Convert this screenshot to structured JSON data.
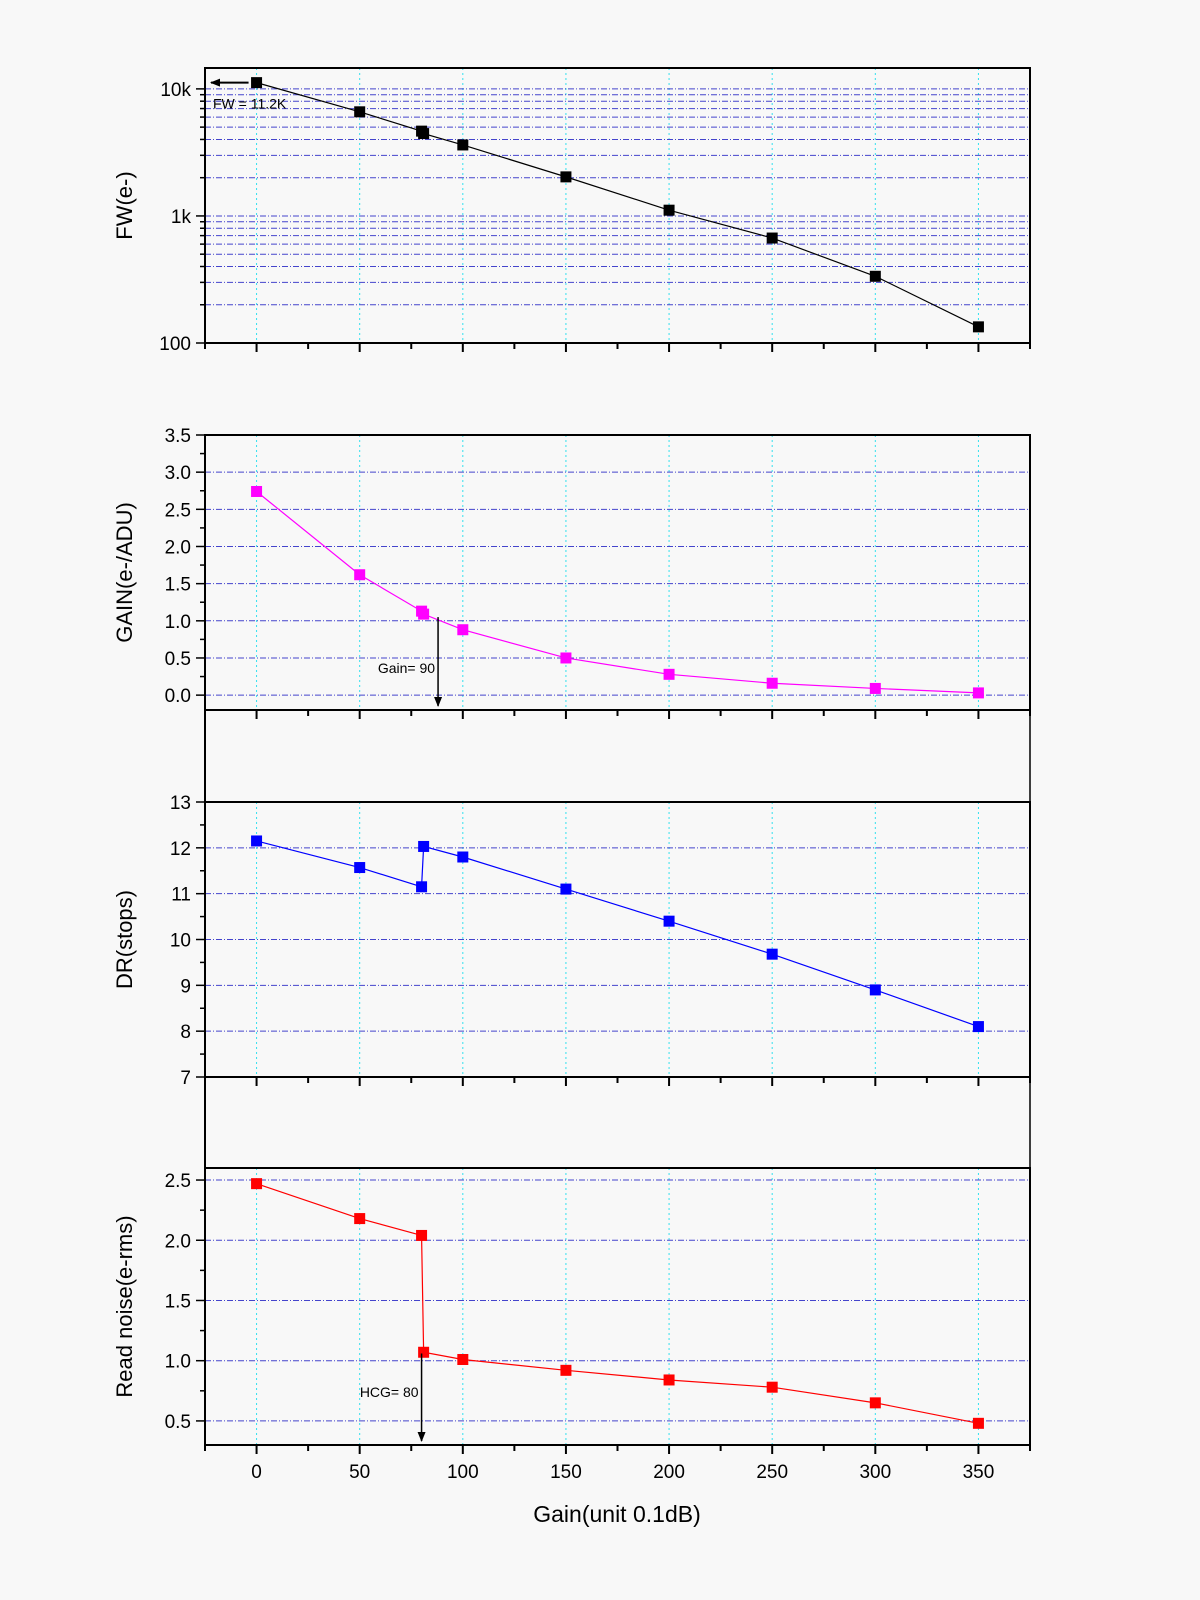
{
  "chart_data": {
    "type": "line",
    "xlabel": "Gain(unit 0.1dB)",
    "xlim": [
      -25,
      375
    ],
    "xticks": [
      0,
      50,
      100,
      150,
      200,
      250,
      300,
      350
    ],
    "xtick_labels": [
      "0",
      "50",
      "100",
      "150",
      "200",
      "250",
      "300",
      "350"
    ],
    "grid": true,
    "panels": [
      {
        "name": "fw",
        "ylabel": "FW(e-)",
        "yscale": "log",
        "ylim": [
          100,
          14600
        ],
        "yticks": [
          100,
          1000,
          10000
        ],
        "ytick_labels": [
          "100",
          "1k",
          "10k"
        ],
        "color": "#000000",
        "x": [
          0,
          50,
          80,
          81,
          100,
          150,
          200,
          250,
          300,
          350
        ],
        "y": [
          11200,
          6600,
          4650,
          4450,
          3620,
          2030,
          1110,
          670,
          335,
          134
        ],
        "annotation": {
          "text": "FW = 11.2K",
          "arrow": "left"
        }
      },
      {
        "name": "gain",
        "ylabel": "GAIN(e-/ADU)",
        "yscale": "linear",
        "ylim": [
          -0.2,
          3.5
        ],
        "yticks": [
          0.0,
          0.5,
          1.0,
          1.5,
          2.0,
          2.5,
          3.0,
          3.5
        ],
        "ytick_labels": [
          "0.0",
          "0.5",
          "1.0",
          "1.5",
          "2.0",
          "2.5",
          "3.0",
          "3.5"
        ],
        "color": "#ff00ff",
        "x": [
          0,
          50,
          80,
          81,
          100,
          150,
          200,
          250,
          300,
          350
        ],
        "y": [
          2.74,
          1.62,
          1.13,
          1.09,
          0.88,
          0.5,
          0.28,
          0.16,
          0.09,
          0.03
        ],
        "annotation": {
          "text": "Gain= 90",
          "arrow_x": 88,
          "arrow": "down"
        }
      },
      {
        "name": "dr",
        "ylabel": "DR(stops)",
        "yscale": "linear",
        "ylim": [
          7,
          13
        ],
        "yticks": [
          7,
          8,
          9,
          10,
          11,
          12,
          13
        ],
        "ytick_labels": [
          "7",
          "8",
          "9",
          "10",
          "11",
          "12",
          "13"
        ],
        "color": "#0000ff",
        "x": [
          0,
          50,
          80,
          81,
          100,
          150,
          200,
          250,
          300,
          350
        ],
        "y": [
          12.15,
          11.57,
          11.15,
          12.03,
          11.8,
          11.1,
          10.4,
          9.68,
          8.9,
          8.1
        ]
      },
      {
        "name": "read-noise",
        "ylabel": "Read noise(e-rms)",
        "yscale": "linear",
        "ylim": [
          0.3,
          2.6
        ],
        "yticks": [
          0.5,
          1.0,
          1.5,
          2.0,
          2.5
        ],
        "ytick_labels": [
          "0.5",
          "1.0",
          "1.5",
          "2.0",
          "2.5"
        ],
        "color": "#ff0000",
        "x": [
          0,
          50,
          80,
          81,
          100,
          150,
          200,
          250,
          300,
          350
        ],
        "y": [
          2.47,
          2.18,
          2.04,
          1.07,
          1.01,
          0.92,
          0.84,
          0.78,
          0.65,
          0.48
        ],
        "annotation": {
          "text": "HCG= 80",
          "arrow_x": 80,
          "arrow": "down"
        }
      }
    ]
  }
}
